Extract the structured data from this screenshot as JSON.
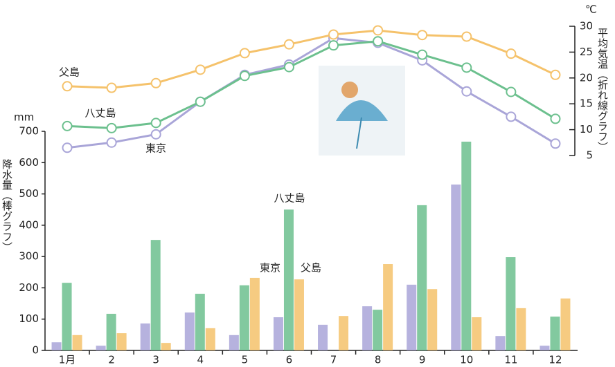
{
  "chart_data": {
    "type": "bar-line",
    "y_label": "降水量（棒グラフ）",
    "y_unit": "mm",
    "y2_label": "平均気温（折れ線グラフ）",
    "y2_unit": "℃",
    "categories": [
      "1月",
      "2",
      "3",
      "4",
      "5",
      "6",
      "7",
      "8",
      "9",
      "10",
      "11",
      "12"
    ],
    "ylim": [
      0,
      700
    ],
    "yticks": [
      0,
      100,
      200,
      300,
      400,
      500,
      600,
      700
    ],
    "y2lim": [
      5,
      30
    ],
    "y2ticks": [
      5,
      10,
      15,
      20,
      25,
      30
    ],
    "series": [
      {
        "name": "東京",
        "color": "#a9a5d8",
        "values": [
          26,
          15,
          86,
          121,
          49,
          106,
          82,
          141,
          210,
          530,
          46,
          15
        ],
        "y2_values": [
          6.5,
          7.5,
          9.1,
          15.4,
          20.6,
          22.6,
          27.7,
          26.8,
          23.4,
          17.4,
          12.5,
          7.3
        ]
      },
      {
        "name": "八丈島",
        "color": "#6cc08e",
        "values": [
          216,
          117,
          353,
          181,
          208,
          450,
          null,
          130,
          464,
          667,
          298,
          108
        ],
        "y2_values": [
          10.7,
          10.3,
          11.3,
          15.4,
          20.4,
          22.1,
          26.3,
          27.1,
          24.5,
          22.0,
          17.3,
          12.1
        ]
      },
      {
        "name": "父島",
        "color": "#f5c26b",
        "values": [
          49,
          55,
          24,
          71,
          232,
          227,
          110,
          276,
          196,
          106,
          135,
          166
        ],
        "y2_values": [
          18.4,
          18.1,
          19.0,
          21.6,
          24.8,
          26.5,
          28.4,
          29.2,
          28.3,
          28.0,
          24.7,
          20.6
        ]
      }
    ]
  }
}
